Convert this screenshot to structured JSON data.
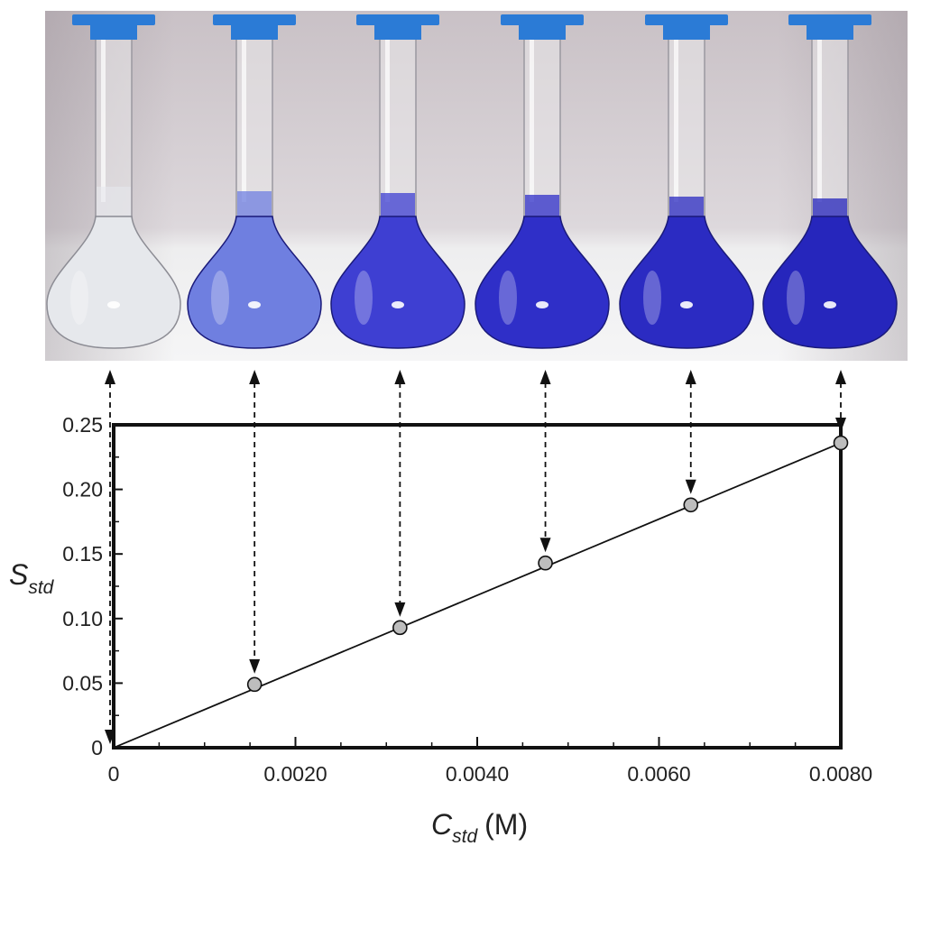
{
  "photo": {
    "caption": "",
    "flask_colors": [
      "#e6e8ec",
      "#6f7fe0",
      "#3e3fd2",
      "#2f2fc8",
      "#2b2bc2",
      "#2626bc"
    ],
    "cap_color": "#2b7bd6"
  },
  "chart_data": {
    "type": "scatter",
    "xlabel": "C",
    "xlabel_sub": "std",
    "xlabel_unit": "(M)",
    "ylabel": "S",
    "ylabel_sub": "std",
    "xlim": [
      0,
      0.008
    ],
    "ylim": [
      0,
      0.25
    ],
    "x_ticks": [
      0,
      0.002,
      0.004,
      0.006,
      0.008
    ],
    "x_tick_labels": [
      "0",
      "0.0020",
      "0.0040",
      "0.0060",
      "0.0080"
    ],
    "y_ticks": [
      0,
      0.05,
      0.1,
      0.15,
      0.2,
      0.25
    ],
    "y_tick_labels": [
      "0",
      "0.05",
      "0.10",
      "0.15",
      "0.20",
      "0.25"
    ],
    "series": [
      {
        "points": [
          {
            "x": 0.0,
            "y": 0.0
          },
          {
            "x": 0.00155,
            "y": 0.049
          },
          {
            "x": 0.00315,
            "y": 0.093
          },
          {
            "x": 0.00475,
            "y": 0.143
          },
          {
            "x": 0.00635,
            "y": 0.188
          },
          {
            "x": 0.008,
            "y": 0.236
          }
        ]
      }
    ],
    "fit_line": {
      "x": [
        0,
        0.008
      ],
      "y": [
        0,
        0.236
      ]
    },
    "grid": false,
    "marker_color": "#bdbdbd",
    "arrows": "dashed arrows link each flask to its data point"
  }
}
